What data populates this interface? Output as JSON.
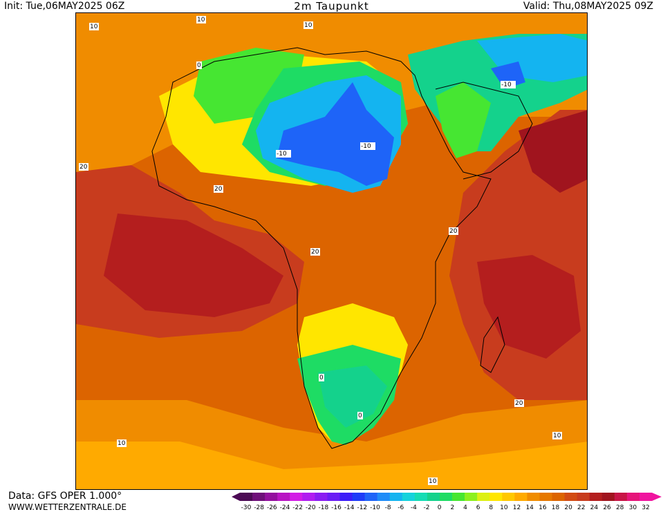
{
  "header": {
    "init": "Init: Tue,06MAY2025 06Z",
    "title": "2m Taupunkt",
    "valid": "Valid: Thu,08MAY2025 09Z"
  },
  "footer": {
    "data_source": "Data: GFS OPER 1.000°",
    "website": "WWW.WETTERZENTRALE.DE"
  },
  "legend": {
    "ticks": [
      "-30",
      "-28",
      "-26",
      "-24",
      "-22",
      "-20",
      "-18",
      "-16",
      "-14",
      "-12",
      "-10",
      "-8",
      "-6",
      "-4",
      "-2",
      "0",
      "2",
      "4",
      "6",
      "8",
      "10",
      "12",
      "14",
      "16",
      "18",
      "20",
      "22",
      "24",
      "26",
      "28",
      "30",
      "32"
    ],
    "colors": [
      "#4b0a55",
      "#6e0f7a",
      "#930f9f",
      "#b814c4",
      "#d21ee6",
      "#b01ef0",
      "#8a1ef2",
      "#6a1ef5",
      "#3c1ef8",
      "#1e3cf8",
      "#1e64f8",
      "#1e8cf8",
      "#14b4f0",
      "#14d2dc",
      "#14dcb4",
      "#14d28c",
      "#1edc64",
      "#46e632",
      "#8cf01e",
      "#dcf014",
      "#ffe600",
      "#ffc800",
      "#ffaa00",
      "#f08c00",
      "#e67800",
      "#dc6400",
      "#d24b14",
      "#c83c1e",
      "#b41e1e",
      "#a0141e",
      "#c81446",
      "#e6147a",
      "#f0149f"
    ]
  },
  "contour_labels": [
    "10",
    "20",
    "0",
    "-10"
  ],
  "colors": {
    "ocean_warm": "#c83c1e",
    "land_hot": "#dc6400",
    "dry": "#14d28c",
    "very_dry": "#1e64f8"
  }
}
